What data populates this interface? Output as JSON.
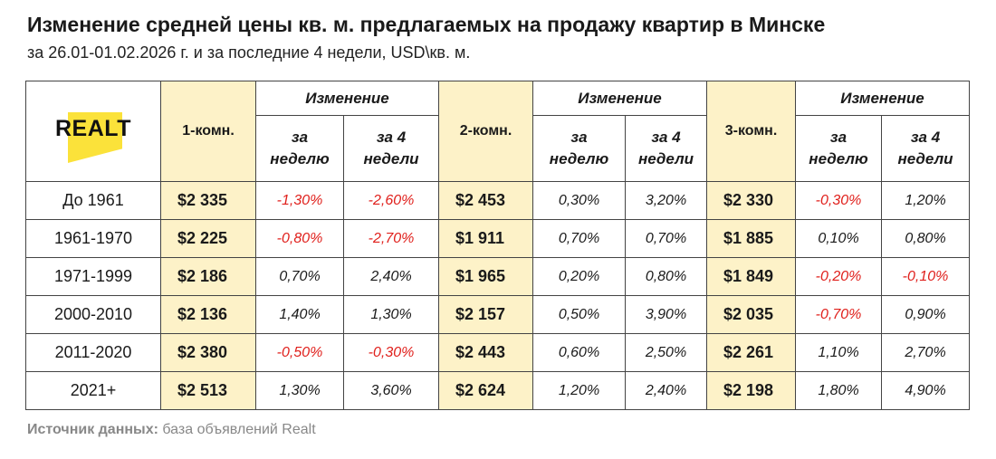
{
  "title": "Изменение средней цены кв. м. предлагаемых на продажу квартир в Минске",
  "subtitle": "за 26.01-01.02.2026 г. и за последние 4 недели, USD\\кв. м.",
  "logo": {
    "text": "REALT"
  },
  "headers": {
    "room_1": "1-комн.",
    "room_2": "2-комн.",
    "room_3": "3-комн.",
    "change": "Изменение",
    "week_line1": "за",
    "week_line2": "неделю",
    "weeks4_line1": "за 4",
    "weeks4_line2": "недели"
  },
  "rows": [
    {
      "period": "До 1961",
      "p1": "$2 335",
      "w1": "-1,30%",
      "m1": "-2,60%",
      "p2": "$2 453",
      "w2": "0,30%",
      "m2": "3,20%",
      "p3": "$2 330",
      "w3": "-0,30%",
      "m3": "1,20%"
    },
    {
      "period": "1961-1970",
      "p1": "$2 225",
      "w1": "-0,80%",
      "m1": "-2,70%",
      "p2": "$1 911",
      "w2": "0,70%",
      "m2": "0,70%",
      "p3": "$1 885",
      "w3": "0,10%",
      "m3": "0,80%"
    },
    {
      "period": "1971-1999",
      "p1": "$2 186",
      "w1": "0,70%",
      "m1": "2,40%",
      "p2": "$1 965",
      "w2": "0,20%",
      "m2": "0,80%",
      "p3": "$1 849",
      "w3": "-0,20%",
      "m3": "-0,10%"
    },
    {
      "period": "2000-2010",
      "p1": "$2 136",
      "w1": "1,40%",
      "m1": "1,30%",
      "p2": "$2 157",
      "w2": "0,50%",
      "m2": "3,90%",
      "p3": "$2 035",
      "w3": "-0,70%",
      "m3": "0,90%"
    },
    {
      "period": "2011-2020",
      "p1": "$2 380",
      "w1": "-0,50%",
      "m1": "-0,30%",
      "p2": "$2 443",
      "w2": "0,60%",
      "m2": "2,50%",
      "p3": "$2 261",
      "w3": "1,10%",
      "m3": "2,70%"
    },
    {
      "period": "2021+",
      "p1": "$2 513",
      "w1": "1,30%",
      "m1": "3,60%",
      "p2": "$2 624",
      "w2": "1,20%",
      "m2": "2,40%",
      "p3": "$2 198",
      "w3": "1,80%",
      "m3": "4,90%"
    }
  ],
  "source": {
    "label": "Источник данных:",
    "text": " база объявлений Realt"
  },
  "colors": {
    "highlight": "#fdf2c8",
    "negative": "#e0201c",
    "logo_yellow": "#fbe23a"
  }
}
